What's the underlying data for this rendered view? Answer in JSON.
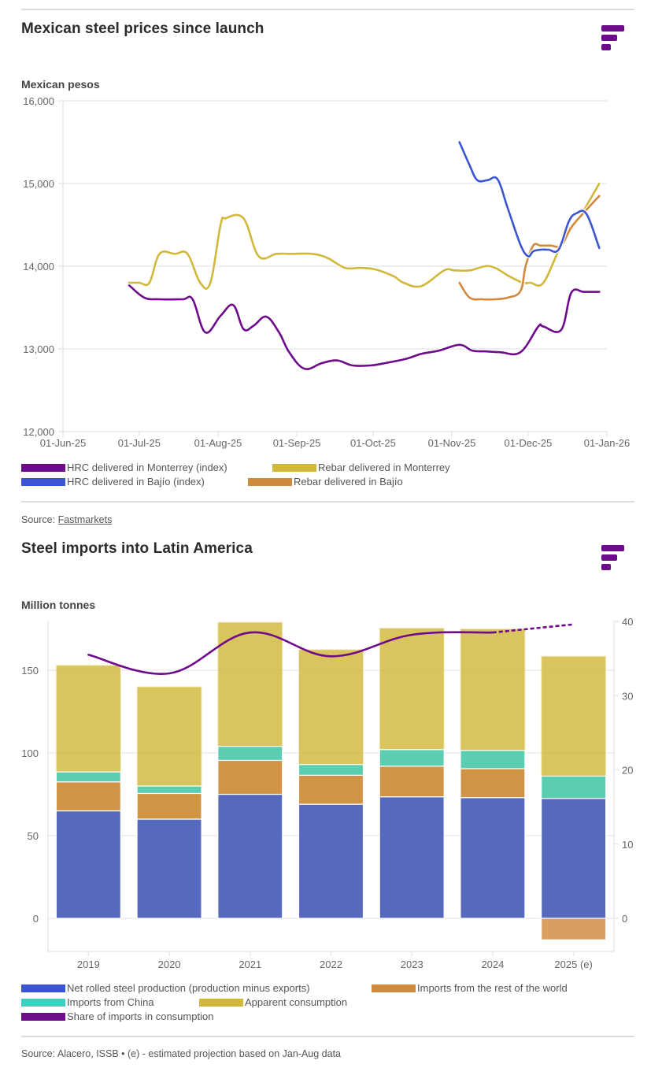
{
  "colors": {
    "brand": "#6e0a8c",
    "hrc_monterrey": "#6e0a8c",
    "rebar_monterrey": "#d1b73a",
    "hrc_bajio": "#3b55d2",
    "rebar_bajio": "#d08a3e",
    "net_production": "#3b55d2",
    "imports_row": "#d08a3e",
    "imports_china": "#3fd0c3",
    "apparent_consumption": "#d1b73a",
    "share_imports": "#6e0a8c"
  },
  "chart1": {
    "title": "Mexican steel prices since launch",
    "source_label": "Source: ",
    "source_link": "Fastmarkets"
  },
  "chart2": {
    "title": "Steel imports into Latin America",
    "source_text": "Source: Alacero, ISSB • (e) - estimated projection based on Jan-Aug data"
  },
  "chart_data": [
    {
      "type": "line",
      "title": "Mexican steel prices since launch",
      "ylabel": "Mexican pesos",
      "xlabel": "",
      "ylim": [
        12000,
        16000
      ],
      "yticks": [
        12000,
        13000,
        14000,
        15000,
        16000
      ],
      "ytick_labels": [
        "12,000",
        "13,000",
        "14,000",
        "15,000",
        "16,000"
      ],
      "x_unit": "days since 01-Jun-25",
      "xlim": [
        0,
        214
      ],
      "xticks": [
        0,
        30,
        61,
        92,
        122,
        153,
        183,
        214
      ],
      "xtick_labels": [
        "01-Jun-25",
        "01-Jul-25",
        "01-Aug-25",
        "01-Sep-25",
        "01-Oct-25",
        "01-Nov-25",
        "01-Dec-25",
        "01-Jan-26"
      ],
      "grid": true,
      "legend_position": "bottom",
      "series": [
        {
          "name": "HRC delivered in Monterrey (index)",
          "color_key": "hrc_monterrey",
          "x": [
            26,
            32,
            38,
            47,
            51,
            56,
            62,
            67,
            71,
            75,
            80,
            85,
            89,
            95,
            102,
            108,
            114,
            121,
            127,
            135,
            141,
            148,
            156,
            161,
            166,
            172,
            180,
            187,
            189,
            196,
            200,
            205,
            211
          ],
          "y": [
            13770,
            13620,
            13600,
            13600,
            13600,
            13200,
            13400,
            13530,
            13240,
            13280,
            13390,
            13200,
            12960,
            12760,
            12830,
            12860,
            12800,
            12800,
            12830,
            12880,
            12940,
            12980,
            13050,
            12980,
            12970,
            12960,
            12960,
            13270,
            13270,
            13230,
            13680,
            13690,
            13690
          ]
        },
        {
          "name": "Rebar delivered in Monterrey",
          "color_key": "rebar_monterrey",
          "x": [
            26,
            30,
            34,
            38,
            44,
            49,
            54,
            58,
            62,
            64,
            71,
            77,
            84,
            90,
            98,
            104,
            111,
            117,
            123,
            130,
            134,
            141,
            150,
            154,
            160,
            168,
            176,
            181,
            184,
            189,
            196,
            204,
            211
          ],
          "y": [
            13800,
            13800,
            13800,
            14150,
            14150,
            14150,
            13800,
            13800,
            14500,
            14580,
            14580,
            14120,
            14150,
            14150,
            14150,
            14100,
            13980,
            13980,
            13960,
            13880,
            13800,
            13760,
            13950,
            13950,
            13950,
            14000,
            13870,
            13800,
            13800,
            13800,
            14250,
            14630,
            15000
          ]
        },
        {
          "name": "HRC delivered in Bajío (index)",
          "color_key": "hrc_bajio",
          "x": [
            156,
            160,
            163,
            167,
            171,
            175,
            180,
            183,
            185,
            188,
            191,
            195,
            199,
            202,
            206,
            211
          ],
          "y": [
            15500,
            15220,
            15040,
            15040,
            15050,
            14700,
            14260,
            14120,
            14180,
            14200,
            14200,
            14200,
            14540,
            14640,
            14630,
            14220
          ]
        },
        {
          "name": "Rebar delivered in Bajío",
          "color_key": "rebar_bajio",
          "x": [
            156,
            160,
            165,
            170,
            175,
            180,
            182,
            185,
            188,
            192,
            196,
            200,
            205,
            211
          ],
          "y": [
            13800,
            13620,
            13600,
            13600,
            13620,
            13700,
            14000,
            14250,
            14250,
            14250,
            14250,
            14470,
            14650,
            14850
          ]
        }
      ]
    },
    {
      "type": "bar",
      "stacked": true,
      "title": "Steel imports into Latin America",
      "ylabel": "Million tonnes",
      "xlabel": "",
      "categories": [
        "2019",
        "2020",
        "2021",
        "2022",
        "2023",
        "2024",
        "2025 (e)"
      ],
      "ylim": [
        -20,
        180
      ],
      "yticks": [
        0,
        50,
        100,
        150
      ],
      "y2lim": [
        -4.2,
        40
      ],
      "y2ticks": [
        0,
        10,
        20,
        30,
        40
      ],
      "grid": true,
      "legend_position": "bottom",
      "series": [
        {
          "name": "Net rolled steel production (production minus exports)",
          "color_key": "net_production",
          "values": [
            65,
            60,
            75,
            69,
            73.5,
            73,
            72.5
          ]
        },
        {
          "name": "Imports from the rest of the world",
          "color_key": "imports_row",
          "values": [
            17.5,
            15.5,
            20.5,
            17.5,
            18.5,
            17.5,
            -13
          ]
        },
        {
          "name": "Imports from China",
          "color_key": "imports_china",
          "values": [
            6,
            4.5,
            8.5,
            6.5,
            10,
            11,
            13.5
          ]
        },
        {
          "name": "Apparent consumption",
          "color_key": "apparent_consumption",
          "values": [
            153,
            140,
            179,
            162.5,
            175.5,
            175,
            158.5
          ],
          "note": "drawn as total bar height behind other segments"
        }
      ],
      "line_series": [
        {
          "name": "Share of imports in consumption",
          "color_key": "share_imports",
          "axis": "right",
          "values": [
            35.5,
            33.0,
            38.5,
            35.3,
            38.2,
            38.5,
            39.6
          ],
          "dashed_from_index": 5
        }
      ],
      "legend_order": [
        "Net rolled steel production (production minus exports)",
        "Imports from the rest of the world",
        "Imports from China",
        "Apparent consumption",
        "Share of imports in consumption"
      ]
    }
  ]
}
